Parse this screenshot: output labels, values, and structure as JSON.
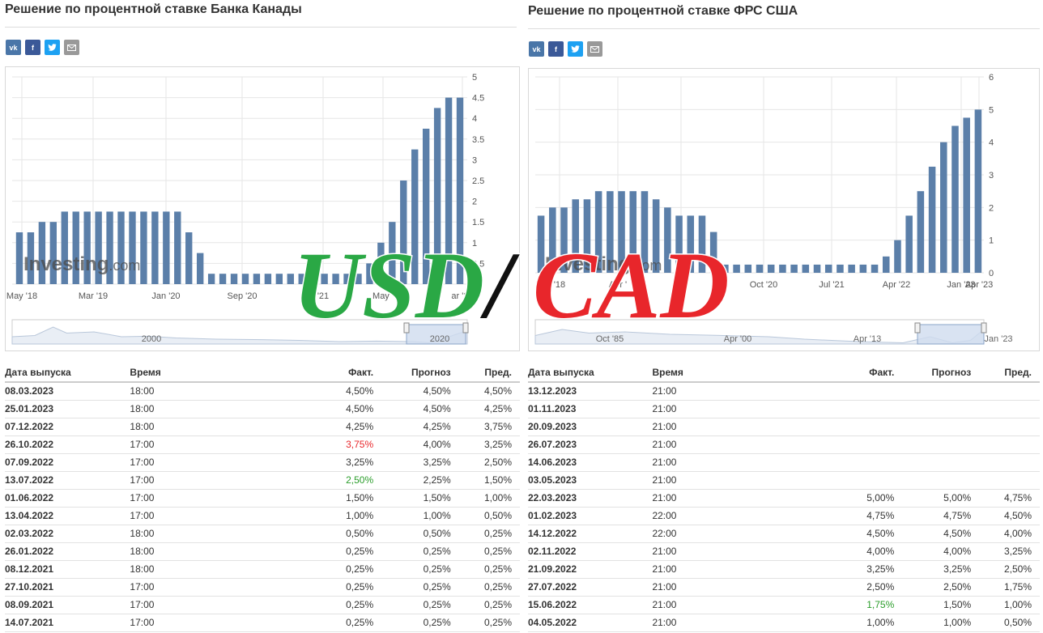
{
  "left": {
    "title": "Решение по процентной ставке Банка Канады",
    "share": [
      "vk",
      "f",
      "tw",
      "@"
    ],
    "watermark": "Investing",
    "watermark_suffix": ".com",
    "colors": {
      "bar": "#5b7fa9",
      "grid": "#e6e6e6"
    },
    "chart_data": {
      "type": "bar",
      "title": "",
      "ylim": [
        0,
        5
      ],
      "y_ticks": [
        "0",
        "0.5",
        "1",
        "1.5",
        "2",
        "2.5",
        "3",
        "3.5",
        "4",
        "4.5",
        "5"
      ],
      "x_tick_labels": [
        "May '18",
        "Mar '19",
        "Jan '20",
        "Sep '20",
        "'21",
        "May '",
        "ar '23"
      ],
      "navigator_labels": [
        "2000",
        "2020"
      ],
      "values": [
        1.25,
        1.25,
        1.5,
        1.5,
        1.75,
        1.75,
        1.75,
        1.75,
        1.75,
        1.75,
        1.75,
        1.75,
        1.75,
        1.75,
        1.75,
        1.25,
        0.75,
        0.25,
        0.25,
        0.25,
        0.25,
        0.25,
        0.25,
        0.25,
        0.25,
        0.25,
        0.25,
        0.25,
        0.25,
        0.25,
        0.25,
        0.5,
        1.0,
        1.5,
        2.5,
        3.25,
        3.75,
        4.25,
        4.5,
        4.5
      ]
    },
    "table": {
      "headers": {
        "date": "Дата выпуска",
        "time": "Время",
        "actual": "Факт.",
        "forecast": "Прогноз",
        "previous": "Пред."
      },
      "rows": [
        {
          "date": "08.03.2023",
          "time": "18:00",
          "actual": "4,50%",
          "forecast": "4,50%",
          "previous": "4,50%",
          "state": ""
        },
        {
          "date": "25.01.2023",
          "time": "18:00",
          "actual": "4,50%",
          "forecast": "4,50%",
          "previous": "4,25%",
          "state": ""
        },
        {
          "date": "07.12.2022",
          "time": "18:00",
          "actual": "4,25%",
          "forecast": "4,25%",
          "previous": "3,75%",
          "state": ""
        },
        {
          "date": "26.10.2022",
          "time": "17:00",
          "actual": "3,75%",
          "forecast": "4,00%",
          "previous": "3,25%",
          "state": "red"
        },
        {
          "date": "07.09.2022",
          "time": "17:00",
          "actual": "3,25%",
          "forecast": "3,25%",
          "previous": "2,50%",
          "state": ""
        },
        {
          "date": "13.07.2022",
          "time": "17:00",
          "actual": "2,50%",
          "forecast": "2,25%",
          "previous": "1,50%",
          "state": "green"
        },
        {
          "date": "01.06.2022",
          "time": "17:00",
          "actual": "1,50%",
          "forecast": "1,50%",
          "previous": "1,00%",
          "state": ""
        },
        {
          "date": "13.04.2022",
          "time": "17:00",
          "actual": "1,00%",
          "forecast": "1,00%",
          "previous": "0,50%",
          "state": ""
        },
        {
          "date": "02.03.2022",
          "time": "18:00",
          "actual": "0,50%",
          "forecast": "0,50%",
          "previous": "0,25%",
          "state": ""
        },
        {
          "date": "26.01.2022",
          "time": "18:00",
          "actual": "0,25%",
          "forecast": "0,25%",
          "previous": "0,25%",
          "state": ""
        },
        {
          "date": "08.12.2021",
          "time": "18:00",
          "actual": "0,25%",
          "forecast": "0,25%",
          "previous": "0,25%",
          "state": ""
        },
        {
          "date": "27.10.2021",
          "time": "17:00",
          "actual": "0,25%",
          "forecast": "0,25%",
          "previous": "0,25%",
          "state": ""
        },
        {
          "date": "08.09.2021",
          "time": "17:00",
          "actual": "0,25%",
          "forecast": "0,25%",
          "previous": "0,25%",
          "state": ""
        },
        {
          "date": "14.07.2021",
          "time": "17:00",
          "actual": "0,25%",
          "forecast": "0,25%",
          "previous": "0,25%",
          "state": ""
        }
      ]
    }
  },
  "right": {
    "title": "Решение по процентной ставке ФРС США",
    "share": [
      "vk",
      "f",
      "tw",
      "@"
    ],
    "watermark": "Investing",
    "watermark_suffix": ".com",
    "colors": {
      "bar": "#5b7fa9",
      "grid": "#e6e6e6"
    },
    "chart_data": {
      "type": "bar",
      "title": "",
      "ylim": [
        0,
        6
      ],
      "y_ticks": [
        "0",
        "1",
        "2",
        "3",
        "4",
        "5",
        "6"
      ],
      "x_tick_labels": [
        "'18",
        "Apr '",
        "Jan",
        "Oct '20",
        "Jul '21",
        "Apr '22",
        "Jan '23",
        "Apr '23"
      ],
      "navigator_labels": [
        "Oct '85",
        "Apr '00",
        "Apr '13",
        "Jan '23"
      ],
      "values": [
        1.75,
        2.0,
        2.0,
        2.25,
        2.25,
        2.5,
        2.5,
        2.5,
        2.5,
        2.5,
        2.25,
        2.0,
        1.75,
        1.75,
        1.75,
        1.25,
        0.25,
        0.25,
        0.25,
        0.25,
        0.25,
        0.25,
        0.25,
        0.25,
        0.25,
        0.25,
        0.25,
        0.25,
        0.25,
        0.25,
        0.5,
        1.0,
        1.75,
        2.5,
        3.25,
        4.0,
        4.5,
        4.75,
        5.0
      ]
    },
    "table": {
      "headers": {
        "date": "Дата выпуска",
        "time": "Время",
        "actual": "Факт.",
        "forecast": "Прогноз",
        "previous": "Пред."
      },
      "rows": [
        {
          "date": "13.12.2023",
          "time": "21:00",
          "actual": "",
          "forecast": "",
          "previous": "",
          "state": ""
        },
        {
          "date": "01.11.2023",
          "time": "21:00",
          "actual": "",
          "forecast": "",
          "previous": "",
          "state": ""
        },
        {
          "date": "20.09.2023",
          "time": "21:00",
          "actual": "",
          "forecast": "",
          "previous": "",
          "state": ""
        },
        {
          "date": "26.07.2023",
          "time": "21:00",
          "actual": "",
          "forecast": "",
          "previous": "",
          "state": ""
        },
        {
          "date": "14.06.2023",
          "time": "21:00",
          "actual": "",
          "forecast": "",
          "previous": "",
          "state": ""
        },
        {
          "date": "03.05.2023",
          "time": "21:00",
          "actual": "",
          "forecast": "",
          "previous": "",
          "state": ""
        },
        {
          "date": "22.03.2023",
          "time": "21:00",
          "actual": "5,00%",
          "forecast": "5,00%",
          "previous": "4,75%",
          "state": ""
        },
        {
          "date": "01.02.2023",
          "time": "22:00",
          "actual": "4,75%",
          "forecast": "4,75%",
          "previous": "4,50%",
          "state": ""
        },
        {
          "date": "14.12.2022",
          "time": "22:00",
          "actual": "4,50%",
          "forecast": "4,50%",
          "previous": "4,00%",
          "state": ""
        },
        {
          "date": "02.11.2022",
          "time": "21:00",
          "actual": "4,00%",
          "forecast": "4,00%",
          "previous": "3,25%",
          "state": ""
        },
        {
          "date": "21.09.2022",
          "time": "21:00",
          "actual": "3,25%",
          "forecast": "3,25%",
          "previous": "2,50%",
          "state": ""
        },
        {
          "date": "27.07.2022",
          "time": "21:00",
          "actual": "2,50%",
          "forecast": "2,50%",
          "previous": "1,75%",
          "state": ""
        },
        {
          "date": "15.06.2022",
          "time": "21:00",
          "actual": "1,75%",
          "forecast": "1,50%",
          "previous": "1,00%",
          "state": "green"
        },
        {
          "date": "04.05.2022",
          "time": "21:00",
          "actual": "1,00%",
          "forecast": "1,00%",
          "previous": "0,50%",
          "state": ""
        }
      ]
    }
  },
  "overlay": {
    "base": "USD",
    "slash": "/",
    "quote": "CAD",
    "colors": {
      "base": "#2aa845",
      "quote": "#e8262b",
      "slash": "#111111",
      "outline": "#ffffff"
    }
  }
}
